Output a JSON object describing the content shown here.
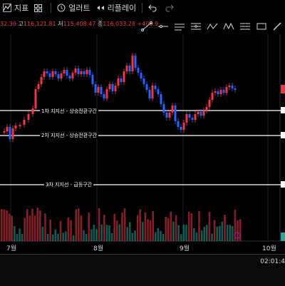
{
  "toolbar": {
    "indicators_label": "지표",
    "alert_label": "얼러트",
    "replay_label": "리플레이"
  },
  "ohlc": {
    "prefix": "32.39",
    "high_label": "고",
    "high": "116,121.81",
    "low_label": "저",
    "low": "115,408.47",
    "close_label": "종",
    "close": "116,033.28",
    "change": "+400.9"
  },
  "levels": [
    {
      "label": "1차 지지선 - 상승전환구간"
    },
    {
      "label": "2차 지지선 - 상승전환구간"
    },
    {
      "label": "3차 지지선 - 급등구간"
    }
  ],
  "time_axis": [
    "7월",
    "8월",
    "9월",
    "10월"
  ],
  "clock": "02:01:4",
  "colors": {
    "up": "#f23645",
    "down": "#2962ff",
    "vol_up": "#f23645",
    "vol_down": "#26a69a",
    "background": "#000000"
  },
  "icons": [
    "indicators-icon",
    "layout-icon",
    "alert-icon",
    "replay-icon",
    "undo-icon",
    "redo-icon",
    "trend-line-icon",
    "ray-icon",
    "horizontal-line-icon",
    "parallel-channel-icon",
    "zigzag-icon",
    "pattern-icon",
    "fib-icon",
    "rectangle-icon",
    "brush-icon"
  ]
}
